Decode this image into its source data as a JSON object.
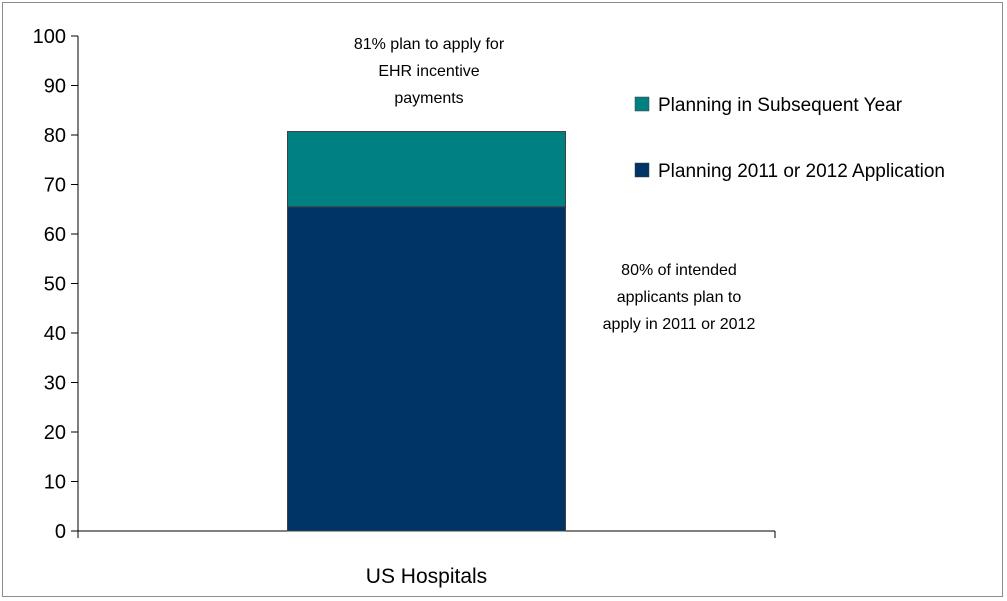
{
  "chart_data": {
    "type": "bar",
    "stacked": true,
    "title": "",
    "xlabel": "",
    "ylabel": "",
    "categories": [
      "US Hospitals"
    ],
    "series": [
      {
        "name": "Planning 2011 or 2012 Application",
        "values": [
          65.5
        ],
        "color": "#003366"
      },
      {
        "name": "Planning in Subsequent Year",
        "values": [
          15.2
        ],
        "color": "#008080"
      }
    ],
    "ylim": [
      0,
      100
    ],
    "yticks": [
      "0",
      "10",
      "20",
      "30",
      "40",
      "50",
      "60",
      "70",
      "80",
      "90",
      "100"
    ],
    "grid": false,
    "legend_position": "right",
    "annotations": [
      {
        "lines": [
          "81% plan to apply for",
          "EHR incentive",
          "payments"
        ],
        "position": "above-bar"
      },
      {
        "lines": [
          "80% of intended",
          "applicants plan to",
          "apply in  2011 or 2012"
        ],
        "position": "right-of-bar"
      }
    ]
  }
}
